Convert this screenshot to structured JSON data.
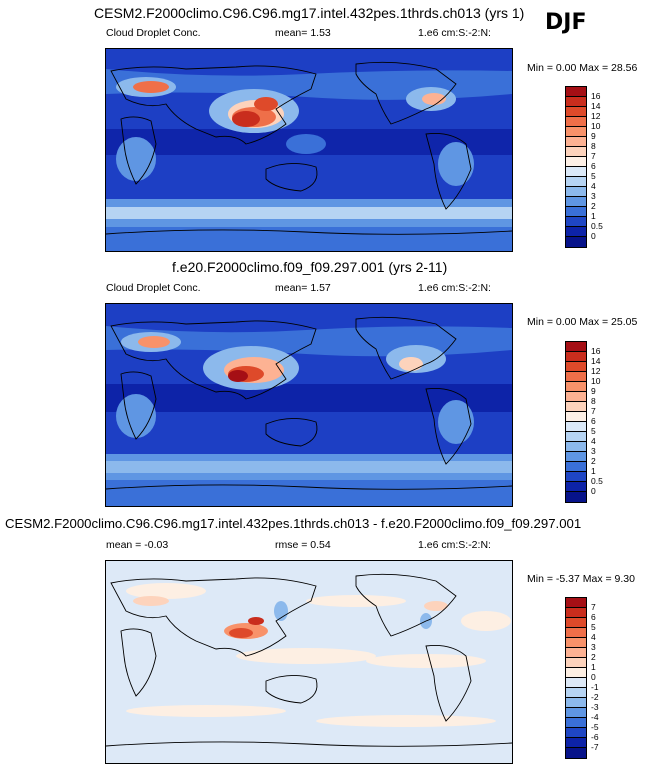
{
  "season": "DJF",
  "panels": [
    {
      "title": "CESM2.F2000climo.C96.C96.mg17.intel.432pes.1thrds.ch013 (yrs 1)",
      "variable": "Cloud Droplet Conc.",
      "stat1": "mean=   1.53",
      "stat2": "",
      "units": "1.e6 cm:S:-2:N:",
      "minmax": "Min =   0.00  Max =  28.56",
      "ticks": [
        "16",
        "14",
        "12",
        "10",
        "9",
        "8",
        "7",
        "6",
        "5",
        "4",
        "3",
        "2",
        "1",
        "0.5",
        "0"
      ],
      "colors": [
        "#a50f15",
        "#c92d1d",
        "#de4a2a",
        "#ef6f49",
        "#f8926a",
        "#fdb293",
        "#fdd3bc",
        "#fdf0e6",
        "#dbe9f8",
        "#b6d4f3",
        "#8cb9ec",
        "#5f96e3",
        "#3a70d8",
        "#1f46c4",
        "#0d23a8",
        "#07138a"
      ]
    },
    {
      "title": "f.e20.F2000climo.f09_f09.297.001 (yrs 2-11)",
      "variable": "Cloud Droplet Conc.",
      "stat1": "mean=   1.57",
      "stat2": "",
      "units": "1.e6 cm:S:-2:N:",
      "minmax": "Min =   0.00  Max =  25.05",
      "ticks": [
        "16",
        "14",
        "12",
        "10",
        "9",
        "8",
        "7",
        "6",
        "5",
        "4",
        "3",
        "2",
        "1",
        "0.5",
        "0"
      ],
      "colors": [
        "#a50f15",
        "#c92d1d",
        "#de4a2a",
        "#ef6f49",
        "#f8926a",
        "#fdb293",
        "#fdd3bc",
        "#fdf0e6",
        "#dbe9f8",
        "#b6d4f3",
        "#8cb9ec",
        "#5f96e3",
        "#3a70d8",
        "#1f46c4",
        "#0d23a8",
        "#07138a"
      ]
    },
    {
      "title": "CESM2.F2000climo.C96.C96.mg17.intel.432pes.1thrds.ch013 - f.e20.F2000climo.f09_f09.297.001",
      "variable": "mean =  -0.03",
      "stat1": "rmse =   0.54",
      "stat2": "",
      "units": "1.e6 cm:S:-2:N:",
      "minmax": "Min =  -5.37  Max =   9.30",
      "ticks": [
        "7",
        "6",
        "5",
        "4",
        "3",
        "2",
        "1",
        "0",
        "-1",
        "-2",
        "-3",
        "-4",
        "-5",
        "-6",
        "-7"
      ],
      "colors": [
        "#a50f15",
        "#c92d1d",
        "#de4a2a",
        "#ef6f49",
        "#f8926a",
        "#fdb293",
        "#fdd3bc",
        "#fdefe3",
        "#dde9f7",
        "#b6d4f3",
        "#8cb9ec",
        "#5f96e3",
        "#3a70d8",
        "#1f46c4",
        "#0d23a8",
        "#07138a"
      ]
    }
  ]
}
